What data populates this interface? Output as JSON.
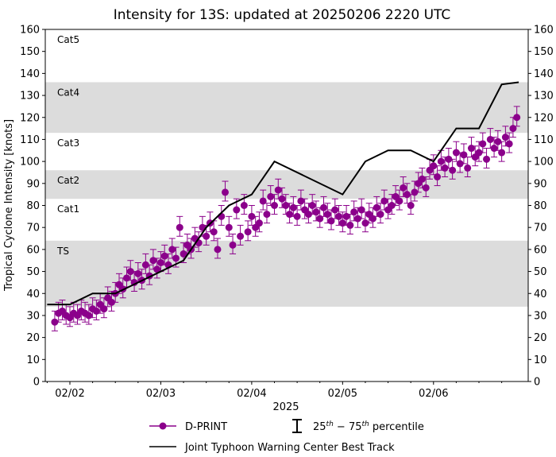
{
  "chart_data": {
    "type": "scatter",
    "title": "Intensity for 13S: updated at 20250206 2220 UTC",
    "xlabel": "2025",
    "ylabel": "Tropical Cyclone Intensity [knots]",
    "ylim": [
      0,
      160
    ],
    "yticks": [
      0,
      10,
      20,
      30,
      40,
      50,
      60,
      70,
      80,
      90,
      100,
      110,
      120,
      130,
      140,
      150,
      160
    ],
    "xticks": [
      {
        "label": "02/02",
        "hour": 0
      },
      {
        "label": "02/03",
        "hour": 24
      },
      {
        "label": "02/04",
        "hour": 48
      },
      {
        "label": "02/05",
        "hour": 72
      },
      {
        "label": "02/06",
        "hour": 96
      }
    ],
    "xlim_hours_from_0202_00Z": [
      -6.5,
      121
    ],
    "categories": [
      {
        "label": "TS",
        "min": 34,
        "max": 64,
        "shaded": true
      },
      {
        "label": "Cat1",
        "min": 64,
        "max": 83,
        "shaded": false
      },
      {
        "label": "Cat2",
        "min": 83,
        "max": 96,
        "shaded": true
      },
      {
        "label": "Cat3",
        "min": 96,
        "max": 113,
        "shaded": false
      },
      {
        "label": "Cat4",
        "min": 113,
        "max": 136,
        "shaded": true
      },
      {
        "label": "Cat5",
        "min": 136,
        "max": 160,
        "shaded": false
      }
    ],
    "series": [
      {
        "name": "D-PRINT",
        "color": "#8b008b",
        "start_hour": -4,
        "step_hours": 1,
        "values": [
          27,
          31,
          32,
          30,
          29,
          31,
          30,
          32,
          31,
          30,
          33,
          32,
          35,
          33,
          38,
          36,
          40,
          44,
          42,
          47,
          50,
          45,
          49,
          46,
          53,
          48,
          55,
          51,
          54,
          57,
          53,
          60,
          56,
          70,
          58,
          62,
          60,
          65,
          63,
          70,
          66,
          72,
          68,
          60,
          75,
          86,
          70,
          62,
          78,
          66,
          80,
          68,
          75,
          70,
          72,
          82,
          76,
          84,
          80,
          87,
          83,
          80,
          76,
          79,
          75,
          82,
          78,
          76,
          80,
          77,
          74,
          79,
          76,
          73,
          78,
          75,
          72,
          75,
          71,
          77,
          74,
          78,
          72,
          76,
          74,
          79,
          76,
          82,
          78,
          80,
          84,
          82,
          88,
          85,
          80,
          86,
          90,
          92,
          88,
          96,
          98,
          93,
          100,
          97,
          101,
          96,
          104,
          99,
          103,
          97,
          106,
          102,
          104,
          108,
          101,
          110,
          106,
          109,
          104,
          111,
          108,
          115,
          120
        ],
        "p25_below": 4,
        "p75_above": 5
      },
      {
        "name": "Joint Typhoon Warning Center Best Track",
        "color": "#000000",
        "points": [
          [
            -6,
            35
          ],
          [
            0,
            35
          ],
          [
            6,
            40
          ],
          [
            12,
            40
          ],
          [
            18,
            45
          ],
          [
            24,
            50
          ],
          [
            30,
            55
          ],
          [
            36,
            70
          ],
          [
            42,
            80
          ],
          [
            48,
            85
          ],
          [
            54,
            100
          ],
          [
            72,
            85
          ],
          [
            78,
            100
          ],
          [
            84,
            105
          ],
          [
            90,
            105
          ],
          [
            96,
            100
          ],
          [
            102,
            115
          ],
          [
            108,
            115
          ],
          [
            114,
            135
          ],
          [
            118.5,
            136
          ]
        ]
      }
    ],
    "legend": {
      "placement": "bottom",
      "dprint": "D-PRINT",
      "percentile_prefix": "25",
      "percentile_mid": " − 75",
      "percentile_suffix": " percentile",
      "percentile_sup": "th",
      "best_track": "Joint Typhoon Warning Center Best Track"
    }
  }
}
